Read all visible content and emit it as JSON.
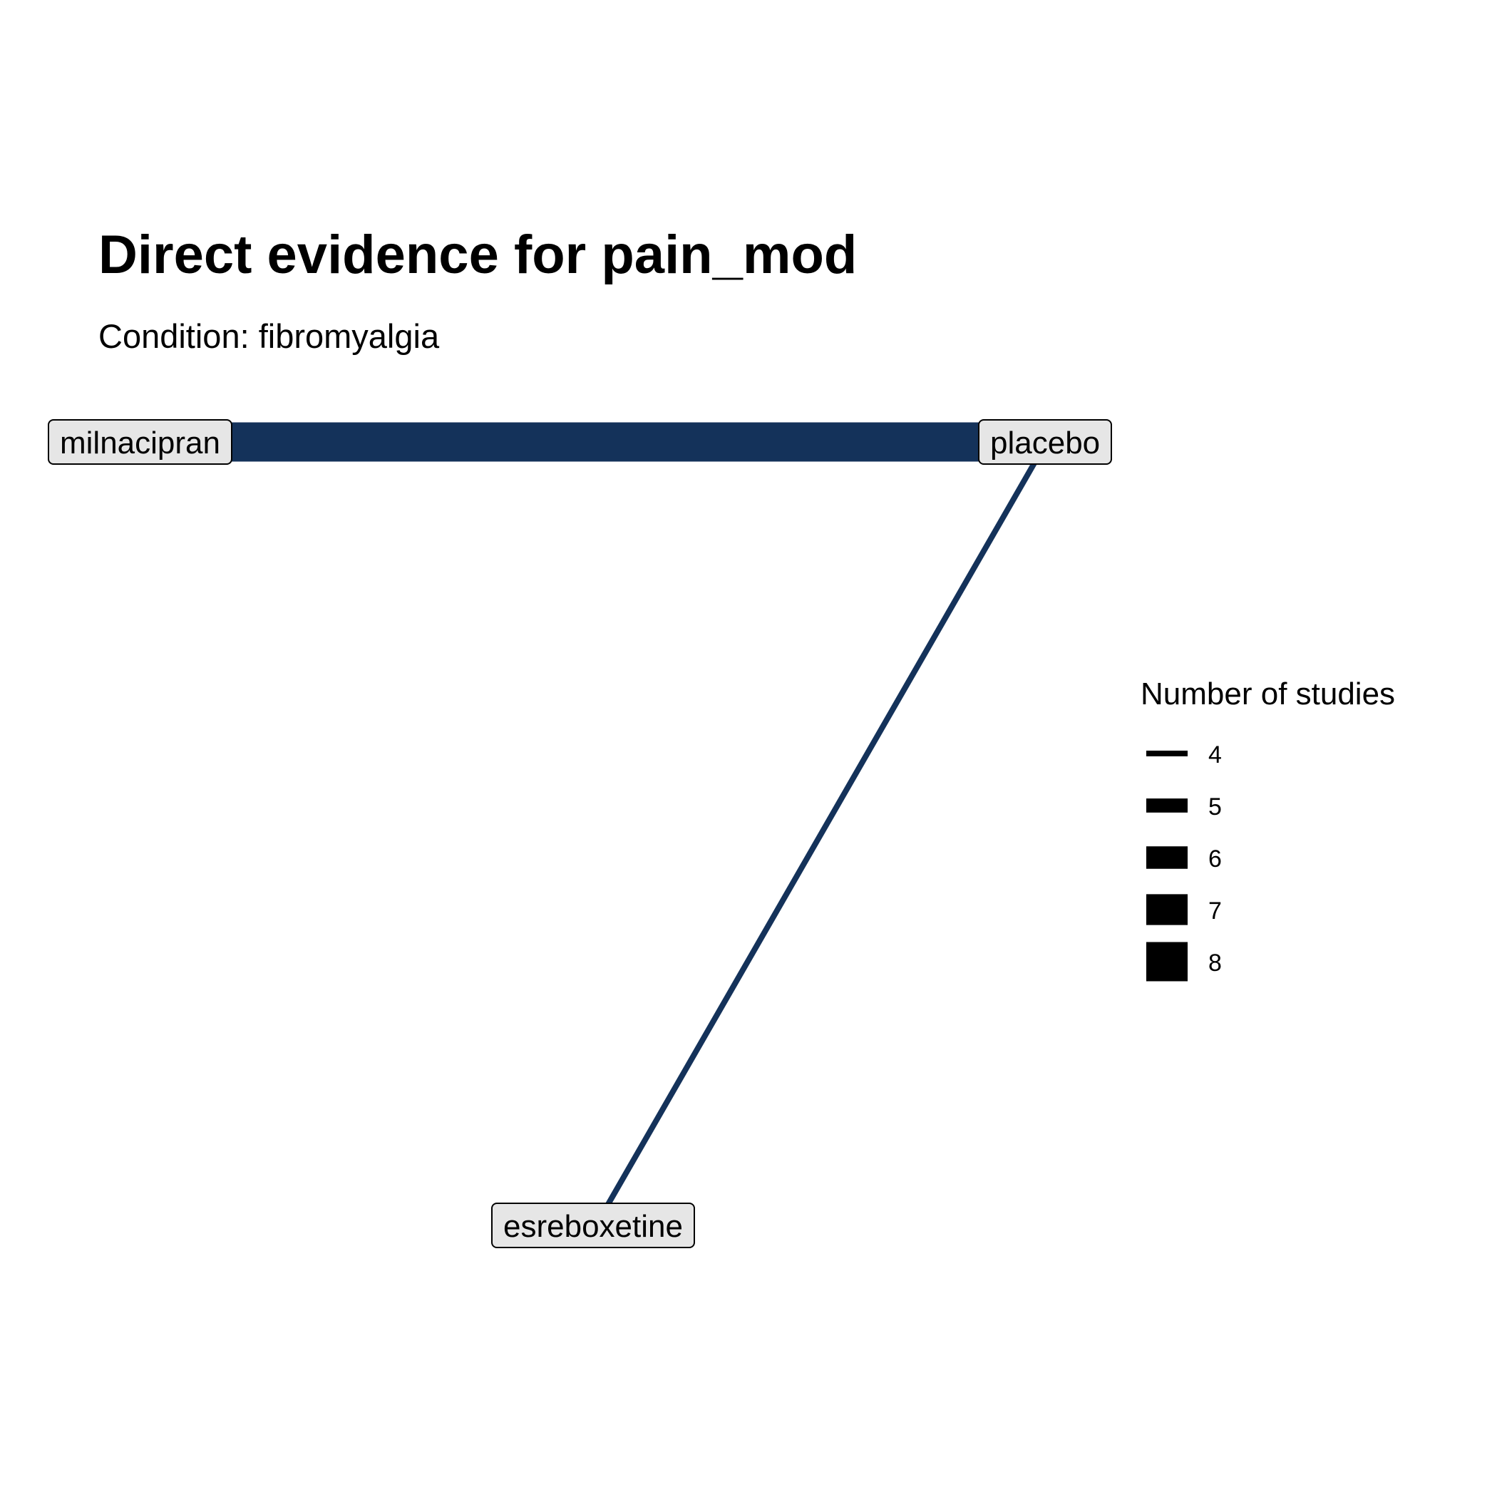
{
  "title": "Direct evidence for pain_mod",
  "subtitle": "Condition: fibromyalgia",
  "colors": {
    "edge": "#14325a",
    "node_fill": "#e6e6e6",
    "legend_key": "#000000"
  },
  "nodes": [
    {
      "id": "milnacipran",
      "label": "milnacipran"
    },
    {
      "id": "placebo",
      "label": "placebo"
    },
    {
      "id": "esreboxetine",
      "label": "esreboxetine"
    }
  ],
  "edges": [
    {
      "from": "milnacipran",
      "to": "placebo",
      "studies": 8
    },
    {
      "from": "placebo",
      "to": "esreboxetine",
      "studies": 4
    }
  ],
  "legend": {
    "title": "Number of studies",
    "items": [
      "4",
      "5",
      "6",
      "7",
      "8"
    ]
  }
}
